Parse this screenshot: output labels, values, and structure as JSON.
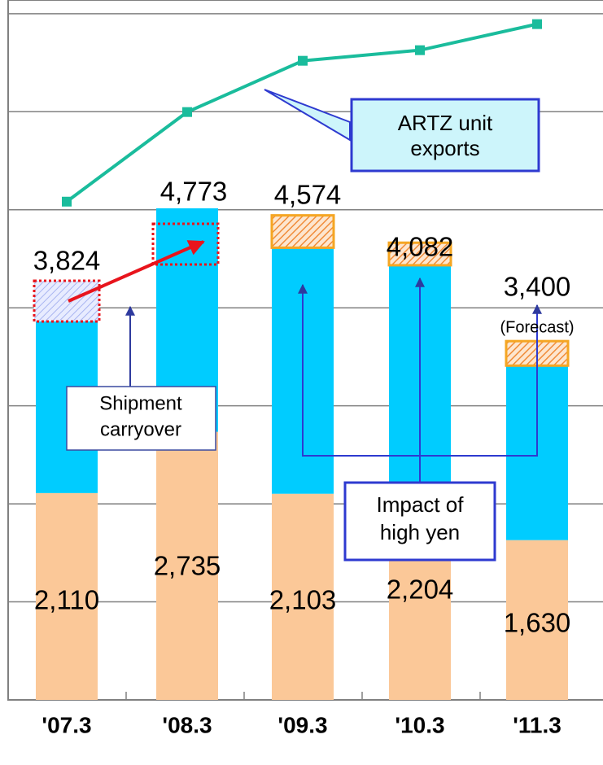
{
  "chart_data": {
    "type": "bar",
    "categories": [
      "'07.3",
      "'08.3",
      "'09.3",
      "'10.3",
      "'11.3"
    ],
    "series": [
      {
        "color": "#fbc898",
        "values": [
          2110,
          2735,
          2103,
          2204,
          1630
        ],
        "value_labels": [
          "2,110",
          "2,735",
          "2,103",
          "2,204",
          "1,630"
        ]
      },
      {
        "color": "#00ccff",
        "values": [
          1960,
          2280,
          2510,
          2230,
          1780
        ]
      },
      {
        "color": "#f5a623",
        "hatched": true,
        "values": [
          null,
          null,
          330,
          230,
          250
        ]
      }
    ],
    "total_labels": [
      "3,824",
      "4,773",
      "4,574",
      "4,082",
      "3,400"
    ],
    "forecast_note": "(Forecast)",
    "line": {
      "color": "#1abc9c",
      "values": [
        5083,
        5997,
        6520,
        6628,
        6894
      ]
    },
    "ylim": [
      0,
      7140
    ],
    "yticks": [
      1000,
      2000,
      3000,
      4000,
      5000,
      6000,
      7000
    ],
    "grid": true,
    "annotations": {
      "artz": [
        "ARTZ unit",
        "exports"
      ],
      "carryover": [
        "Shipment",
        "carryover"
      ],
      "yen": [
        "Impact of",
        "high yen"
      ]
    }
  }
}
